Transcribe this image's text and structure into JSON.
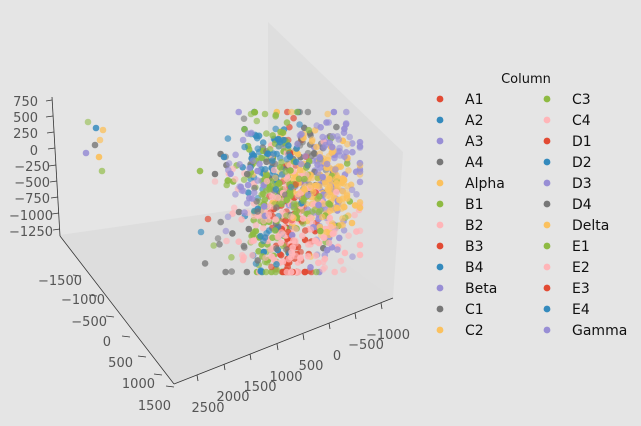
{
  "chart_data": {
    "type": "scatter",
    "projection": "3d",
    "legend": {
      "title": "Column",
      "placement": "right",
      "entries": [
        {
          "name": "A1",
          "color": "#e24a33"
        },
        {
          "name": "A2",
          "color": "#348abd"
        },
        {
          "name": "A3",
          "color": "#988ed5"
        },
        {
          "name": "A4",
          "color": "#777777"
        },
        {
          "name": "Alpha",
          "color": "#fbc15e"
        },
        {
          "name": "B1",
          "color": "#8eba42"
        },
        {
          "name": "B2",
          "color": "#ffb5b8"
        },
        {
          "name": "B3",
          "color": "#e24a33"
        },
        {
          "name": "B4",
          "color": "#348abd"
        },
        {
          "name": "Beta",
          "color": "#988ed5"
        },
        {
          "name": "C1",
          "color": "#777777"
        },
        {
          "name": "C2",
          "color": "#fbc15e"
        },
        {
          "name": "C3",
          "color": "#8eba42"
        },
        {
          "name": "C4",
          "color": "#ffb5b8"
        },
        {
          "name": "D1",
          "color": "#e24a33"
        },
        {
          "name": "D2",
          "color": "#348abd"
        },
        {
          "name": "D3",
          "color": "#988ed5"
        },
        {
          "name": "D4",
          "color": "#777777"
        },
        {
          "name": "Delta",
          "color": "#fbc15e"
        },
        {
          "name": "E1",
          "color": "#8eba42"
        },
        {
          "name": "E2",
          "color": "#ffb5b8"
        },
        {
          "name": "E3",
          "color": "#e24a33"
        },
        {
          "name": "E4",
          "color": "#348abd"
        },
        {
          "name": "Gamma",
          "color": "#988ed5"
        }
      ]
    },
    "z_axis": {
      "tick_labels": [
        "750",
        "500",
        "250",
        "0",
        "−250",
        "−500",
        "−750",
        "−1000",
        "−1250"
      ]
    },
    "y_axis": {
      "tick_labels": [
        "−1500",
        "−1000",
        "−500",
        "0",
        "500",
        "1000",
        "1500"
      ]
    },
    "x_axis": {
      "tick_labels": [
        "2500",
        "2000",
        "1500",
        "1000",
        "500",
        "0",
        "−500",
        "−1000"
      ]
    },
    "clusters": [
      {
        "series": "A1",
        "cx": 290,
        "cy": 220,
        "sx": 10,
        "sy": 45,
        "n": 70
      },
      {
        "series": "A2",
        "cx": 268,
        "cy": 160,
        "sx": 15,
        "sy": 22,
        "n": 45
      },
      {
        "series": "A3",
        "cx": 330,
        "cy": 175,
        "sx": 20,
        "sy": 30,
        "n": 55
      },
      {
        "series": "A4",
        "cx": 305,
        "cy": 165,
        "sx": 18,
        "sy": 30,
        "n": 55
      },
      {
        "series": "Alpha",
        "cx": 300,
        "cy": 175,
        "sx": 22,
        "sy": 25,
        "n": 90
      },
      {
        "series": "B1",
        "cx": 265,
        "cy": 205,
        "sx": 18,
        "sy": 40,
        "n": 110
      },
      {
        "series": "B2",
        "cx": 280,
        "cy": 215,
        "sx": 38,
        "sy": 35,
        "n": 110
      },
      {
        "series": "B3",
        "cx": 290,
        "cy": 240,
        "sx": 12,
        "sy": 30,
        "n": 35
      },
      {
        "series": "B4",
        "cx": 270,
        "cy": 240,
        "sx": 15,
        "sy": 25,
        "n": 25
      },
      {
        "series": "Beta",
        "cx": 325,
        "cy": 215,
        "sx": 18,
        "sy": 30,
        "n": 40
      },
      {
        "series": "C1",
        "cx": 250,
        "cy": 215,
        "sx": 20,
        "sy": 40,
        "n": 30
      },
      {
        "series": "C2",
        "cx": 330,
        "cy": 185,
        "sx": 15,
        "sy": 22,
        "n": 45
      },
      {
        "series": "C3",
        "cx": 300,
        "cy": 200,
        "sx": 22,
        "sy": 35,
        "n": 70
      },
      {
        "series": "D2",
        "cx": 275,
        "cy": 150,
        "sx": 15,
        "sy": 15,
        "n": 25
      },
      {
        "series": "D3",
        "cx": 245,
        "cy": 175,
        "sx": 12,
        "sy": 25,
        "n": 30
      },
      {
        "series": "Delta",
        "cx": 340,
        "cy": 195,
        "sx": 14,
        "sy": 25,
        "n": 35
      },
      {
        "series": "E2",
        "cx": 305,
        "cy": 240,
        "sx": 30,
        "sy": 20,
        "n": 60
      },
      {
        "series": "Gamma",
        "cx": 330,
        "cy": 150,
        "sx": 20,
        "sy": 20,
        "n": 35
      }
    ],
    "outlier_points": [
      {
        "series": "B1",
        "x": 88,
        "y": 122
      },
      {
        "series": "A2",
        "x": 96,
        "y": 128
      },
      {
        "series": "C2",
        "x": 103,
        "y": 130
      },
      {
        "series": "Alpha",
        "x": 100,
        "y": 140
      },
      {
        "series": "A4",
        "x": 95,
        "y": 145
      },
      {
        "series": "Beta",
        "x": 86,
        "y": 153
      },
      {
        "series": "C2",
        "x": 99,
        "y": 157
      },
      {
        "series": "B1",
        "x": 102,
        "y": 171
      },
      {
        "series": "B4",
        "x": 201,
        "y": 232
      },
      {
        "series": "A1",
        "x": 208,
        "y": 219
      },
      {
        "series": "C1",
        "x": 215,
        "y": 174
      },
      {
        "series": "D2",
        "x": 224,
        "y": 157
      },
      {
        "series": "B1",
        "x": 251,
        "y": 114
      },
      {
        "series": "B1",
        "x": 265,
        "y": 114
      }
    ]
  }
}
